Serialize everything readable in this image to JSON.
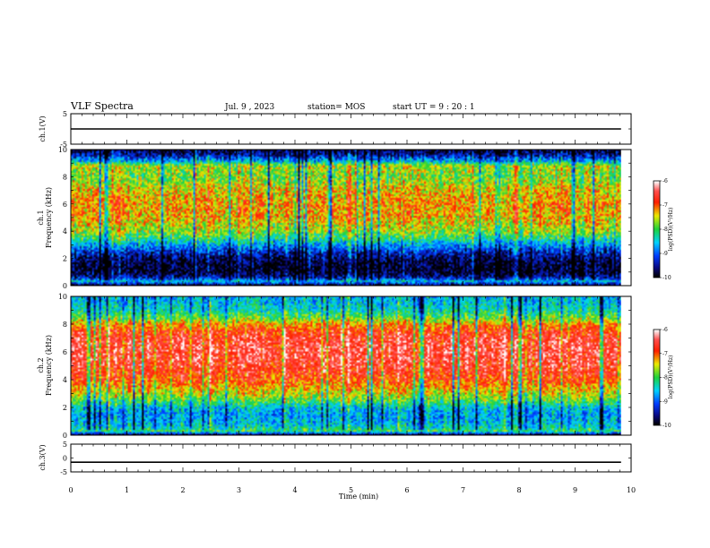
{
  "header": {
    "title": "VLF Spectra",
    "date": "Jul. 9 , 2023",
    "station": "station= MOS",
    "start": "start UT = 9 : 20 : 1"
  },
  "chart_data": [
    {
      "type": "line",
      "panel": "ch1-waveform",
      "ylabel": "ch.1(V)",
      "ylim": [
        -5,
        5
      ],
      "yticks": [
        5,
        -5
      ],
      "xlim": [
        0,
        10
      ],
      "series": [
        {
          "x": [
            0,
            9.82
          ],
          "y": [
            0,
            0
          ]
        }
      ]
    },
    {
      "type": "heatmap",
      "panel": "ch1-spectrogram",
      "ylabel": "ch.1\nFrequency (kHz)",
      "ylim": [
        0,
        10
      ],
      "yticks": [
        0,
        2,
        4,
        6,
        8,
        10
      ],
      "xlim": [
        0,
        10
      ],
      "data_end_min": 9.82,
      "colorbar": {
        "label": "log(PSD)(V²/Hz)",
        "range": [
          -10,
          -6
        ],
        "ticks": [
          -10,
          -9,
          -8,
          -7,
          -6
        ]
      },
      "band_profile": {
        "freq_kHz": [
          0,
          0.3,
          0.6,
          1,
          1.5,
          2,
          2.5,
          3,
          3.5,
          4,
          5,
          6,
          7,
          8,
          8.8,
          9.2,
          9.6,
          10
        ],
        "log_psd": [
          -10,
          -8.5,
          -9.5,
          -9.9,
          -9.9,
          -9.7,
          -9.3,
          -8.7,
          -8.1,
          -7.7,
          -7.3,
          -7.2,
          -7.4,
          -7.8,
          -7.6,
          -8.8,
          -9.5,
          -9.9
        ]
      }
    },
    {
      "type": "heatmap",
      "panel": "ch2-spectrogram",
      "ylabel": "ch.2\nFrequency (kHz)",
      "ylim": [
        0,
        10
      ],
      "yticks": [
        0,
        2,
        4,
        6,
        8,
        10
      ],
      "xlim": [
        0,
        10
      ],
      "data_end_min": 9.82,
      "colorbar": {
        "label": "log(PSD)(V²/Hz)",
        "range": [
          -10,
          -6
        ],
        "ticks": [
          -10,
          -9,
          -8,
          -7,
          -6
        ]
      },
      "band_profile": {
        "freq_kHz": [
          0,
          0.3,
          0.6,
          1,
          1.5,
          2,
          2.5,
          3,
          3.5,
          4,
          5,
          6,
          7,
          7.5,
          8,
          8.5,
          9,
          9.5,
          10
        ],
        "log_psd": [
          -10,
          -8.0,
          -8.4,
          -8.6,
          -8.7,
          -8.5,
          -7.9,
          -7.5,
          -7.2,
          -6.9,
          -6.6,
          -6.5,
          -6.6,
          -6.8,
          -7.2,
          -7.9,
          -8.3,
          -8.5,
          -8.6
        ]
      }
    },
    {
      "type": "line",
      "panel": "ch3-waveform",
      "ylabel": "ch.3(V)",
      "ylim": [
        -5,
        5
      ],
      "yticks": [
        5,
        0,
        -5
      ],
      "xlim": [
        0,
        10
      ],
      "xlabel": "Time (min)",
      "xticks": [
        0,
        1,
        2,
        3,
        4,
        5,
        6,
        7,
        8,
        9,
        10
      ],
      "series": [
        {
          "x": [
            0,
            9.82
          ],
          "y": [
            -1.5,
            -1.5
          ]
        }
      ]
    }
  ]
}
